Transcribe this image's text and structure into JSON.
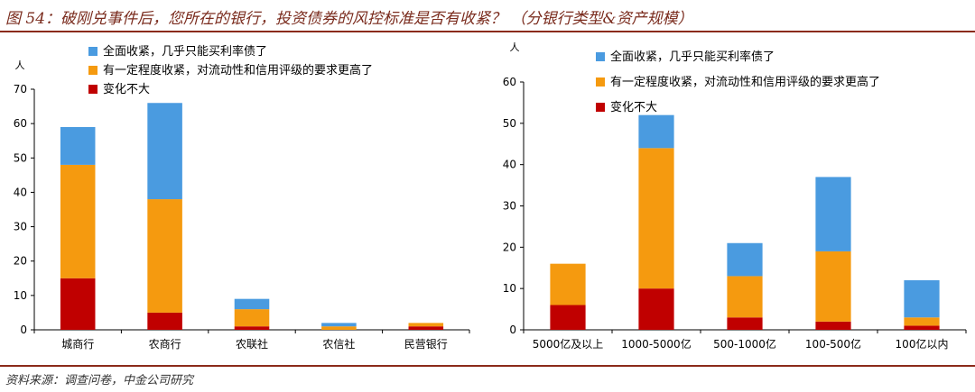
{
  "header": {
    "title": "图 54：破刚兑事件后，您所在的银行，投资债券的风控标准是否有收紧？  （分银行类型&资产规模）"
  },
  "footer": {
    "source": "资料来源：调查问卷，中金公司研究"
  },
  "colors": {
    "full_tighten": "#4a9be0",
    "some_tighten": "#f59a0f",
    "no_change": "#c00000",
    "axis": "#000000",
    "accent": "#8b2a1a"
  },
  "chart_data": [
    {
      "type": "bar",
      "stacked": true,
      "ylabel": "人",
      "ylim": [
        0,
        70
      ],
      "yticks": [
        0,
        10,
        20,
        30,
        40,
        50,
        60,
        70
      ],
      "grid": false,
      "legend_position": "top-left",
      "categories": [
        "城商行",
        "农商行",
        "农联社",
        "农信社",
        "民营银行"
      ],
      "series": [
        {
          "name": "变化不大",
          "color_key": "no_change",
          "values": [
            15,
            5,
            1,
            0,
            1
          ]
        },
        {
          "name": "有一定程度收紧，对流动性和信用评级的要求更高了",
          "color_key": "some_tighten",
          "values": [
            33,
            33,
            5,
            1,
            1
          ]
        },
        {
          "name": "全面收紧，几乎只能买利率债了",
          "color_key": "full_tighten",
          "values": [
            11,
            28,
            3,
            1,
            0
          ]
        }
      ]
    },
    {
      "type": "bar",
      "stacked": true,
      "ylabel": "人",
      "ylim": [
        0,
        60
      ],
      "yticks": [
        0,
        10,
        20,
        30,
        40,
        50,
        60
      ],
      "grid": false,
      "legend_position": "top-left",
      "categories": [
        "5000亿及以上",
        "1000-5000亿",
        "500-1000亿",
        "100-500亿",
        "100亿以内"
      ],
      "series": [
        {
          "name": "变化不大",
          "color_key": "no_change",
          "values": [
            6,
            10,
            3,
            2,
            1
          ]
        },
        {
          "name": "有一定程度收紧，对流动性和信用评级的要求更高了",
          "color_key": "some_tighten",
          "values": [
            10,
            34,
            10,
            17,
            2
          ]
        },
        {
          "name": "全面收紧，几乎只能买利率债了",
          "color_key": "full_tighten",
          "values": [
            0,
            8,
            8,
            18,
            9
          ]
        }
      ]
    }
  ]
}
